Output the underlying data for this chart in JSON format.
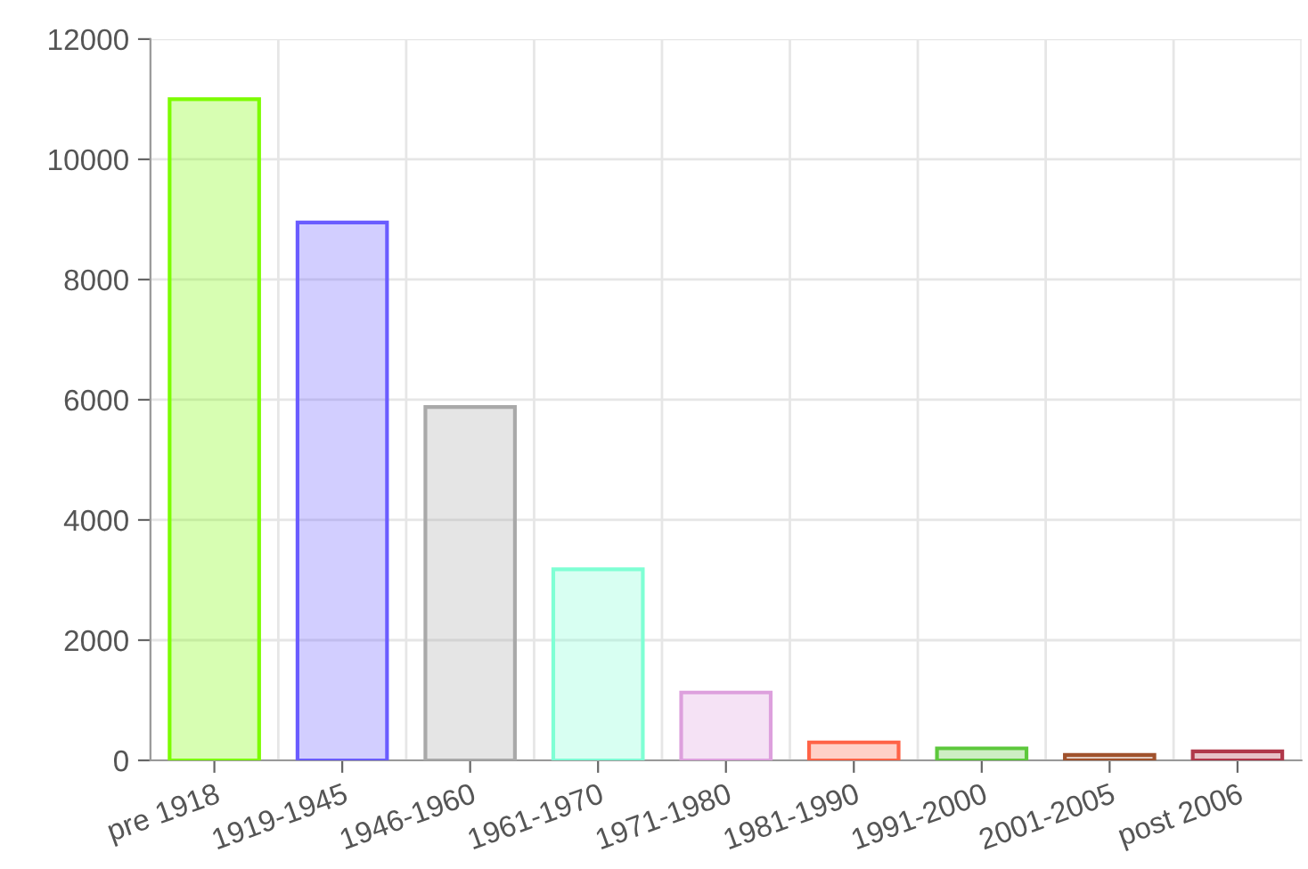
{
  "chart_data": {
    "type": "bar",
    "categories": [
      "pre 1918",
      "1919-1945",
      "1946-1960",
      "1961-1970",
      "1971-1980",
      "1981-1990",
      "1991-2000",
      "2001-2005",
      "post 2006"
    ],
    "values": [
      11000,
      8950,
      5880,
      3180,
      1130,
      300,
      200,
      90,
      150
    ],
    "colors": [
      "#7cfc00",
      "#6a5cff",
      "#a9a9a9",
      "#7fffd4",
      "#dda0dd",
      "#ff6347",
      "#5dc83c",
      "#a0522d",
      "#b0384a"
    ],
    "ylim": [
      0,
      12000
    ],
    "yticks": [
      0,
      2000,
      4000,
      6000,
      8000,
      10000,
      12000
    ],
    "grid": true
  }
}
